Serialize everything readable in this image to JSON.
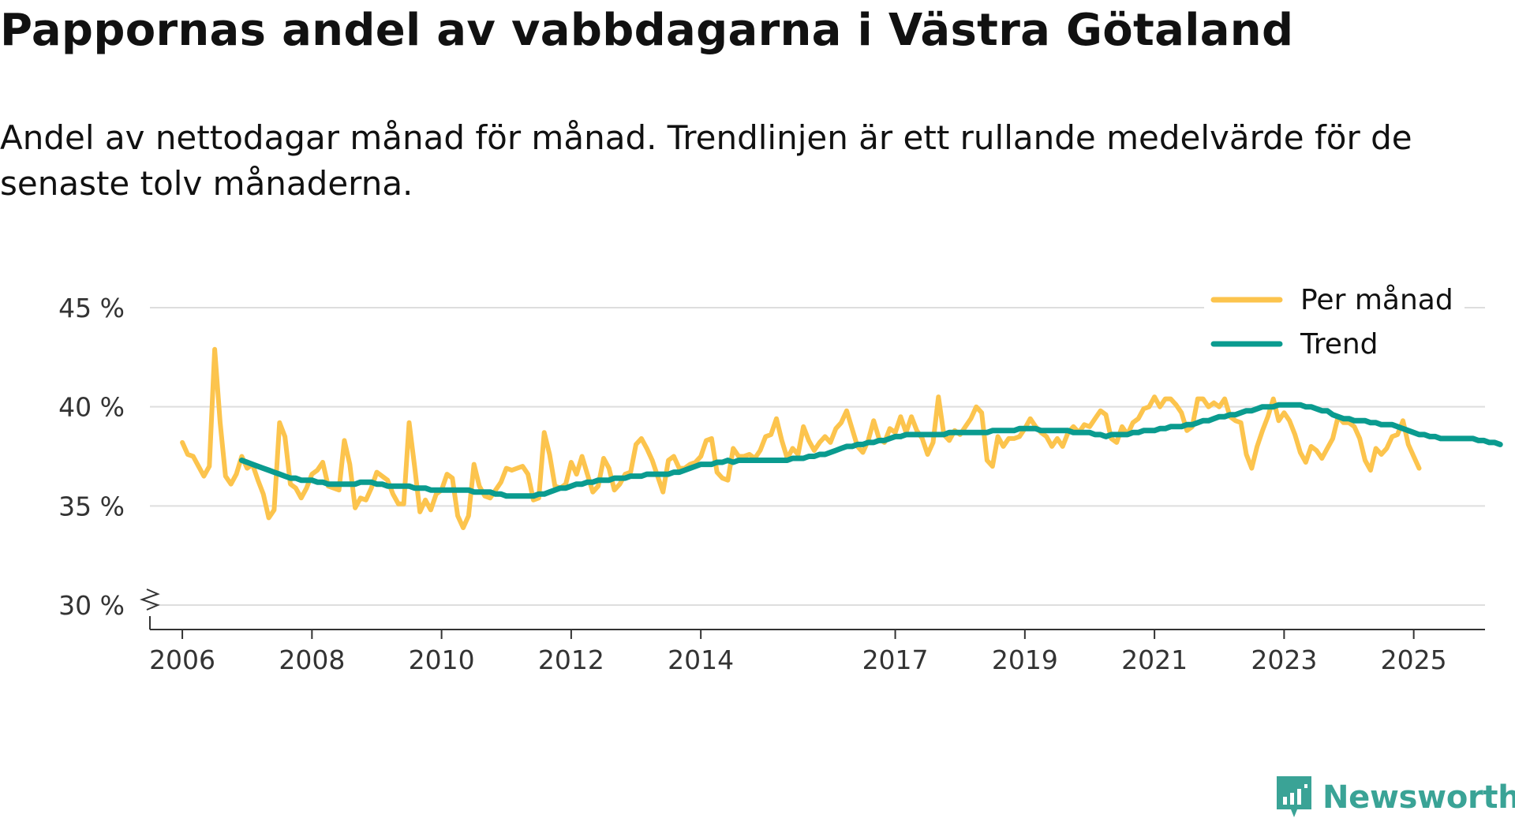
{
  "title": "Pappornas andel av vabbdagarna i Västra Götaland",
  "subtitle": "Andel av nettodagar månad för månad. Trendlinjen är ett rullande medelvärde för de senaste tolv månaderna.",
  "brand": "Newsworthy",
  "colors": {
    "monthly": "#fcc44d",
    "trend": "#0a9b8f",
    "grid": "#dedede",
    "axis": "#333333",
    "brand": "#3aa396"
  },
  "chart_data": {
    "type": "line",
    "title": "Pappornas andel av vabbdagarna i Västra Götaland",
    "xlabel": "",
    "ylabel": "",
    "ylim": [
      30,
      45
    ],
    "xlim": [
      2005.5,
      2026.1
    ],
    "y_ticks": [
      {
        "value": 30,
        "label": "30 %"
      },
      {
        "value": 35,
        "label": "35 %"
      },
      {
        "value": 40,
        "label": "40 %"
      },
      {
        "value": 45,
        "label": "45 %"
      }
    ],
    "x_ticks": [
      {
        "value": 2006,
        "label": "2006"
      },
      {
        "value": 2008,
        "label": "2008"
      },
      {
        "value": 2010,
        "label": "2010"
      },
      {
        "value": 2012,
        "label": "2012"
      },
      {
        "value": 2014,
        "label": "2014"
      },
      {
        "value": 2017,
        "label": "2017"
      },
      {
        "value": 2019,
        "label": "2019"
      },
      {
        "value": 2021,
        "label": "2021"
      },
      {
        "value": 2023,
        "label": "2023"
      },
      {
        "value": 2025,
        "label": "2025"
      }
    ],
    "legend": {
      "position": "top-right",
      "entries": [
        "Per månad",
        "Trend"
      ]
    },
    "series": [
      {
        "name": "Per månad",
        "color": "#fcc44d",
        "start": 2006.0,
        "step": 0.0833333,
        "values": [
          38.2,
          37.6,
          37.5,
          37.0,
          36.5,
          37.0,
          42.9,
          39.2,
          36.5,
          36.1,
          36.6,
          37.5,
          36.9,
          37.1,
          36.3,
          35.6,
          34.4,
          34.8,
          39.2,
          38.5,
          36.1,
          35.9,
          35.4,
          35.9,
          36.6,
          36.8,
          37.2,
          36.0,
          35.9,
          35.8,
          38.3,
          37.1,
          34.9,
          35.4,
          35.3,
          35.9,
          36.7,
          36.5,
          36.3,
          35.6,
          35.1,
          35.1,
          39.2,
          37.0,
          34.7,
          35.3,
          34.8,
          35.6,
          35.8,
          36.6,
          36.4,
          34.5,
          33.9,
          34.5,
          37.1,
          36.0,
          35.5,
          35.4,
          35.8,
          36.2,
          36.9,
          36.8,
          36.9,
          37.0,
          36.6,
          35.3,
          35.4,
          38.7,
          37.6,
          36.0,
          35.9,
          36.1,
          37.2,
          36.6,
          37.5,
          36.6,
          35.7,
          36.0,
          37.4,
          36.9,
          35.8,
          36.1,
          36.6,
          36.7,
          38.1,
          38.4,
          37.9,
          37.3,
          36.5,
          35.7,
          37.3,
          37.5,
          36.9,
          36.9,
          37.1,
          37.2,
          37.5,
          38.3,
          38.4,
          36.7,
          36.4,
          36.3,
          37.9,
          37.5,
          37.5,
          37.6,
          37.4,
          37.8,
          38.5,
          38.6,
          39.4,
          38.3,
          37.4,
          37.9,
          37.6,
          39.0,
          38.3,
          37.8,
          38.2,
          38.5,
          38.2,
          38.9,
          39.2,
          39.8,
          38.9,
          38.0,
          37.7,
          38.3,
          39.3,
          38.4,
          38.2,
          38.9,
          38.7,
          39.5,
          38.7,
          39.5,
          38.8,
          38.4,
          37.6,
          38.2,
          40.5,
          38.6,
          38.3,
          38.8,
          38.6,
          39.0,
          39.4,
          40.0,
          39.7,
          37.3,
          37.0,
          38.5,
          38.0,
          38.4,
          38.4,
          38.5,
          38.9,
          39.4,
          39.0,
          38.7,
          38.5,
          38.0,
          38.4,
          38.0,
          38.7,
          39.0,
          38.7,
          39.1,
          39.0,
          39.4,
          39.8,
          39.6,
          38.4,
          38.2,
          39.0,
          38.6,
          39.2,
          39.4,
          39.9,
          40.0,
          40.5,
          40.0,
          40.4,
          40.4,
          40.1,
          39.7,
          38.8,
          39.0,
          40.4,
          40.4,
          40.0,
          40.2,
          40.0,
          40.4,
          39.5,
          39.3,
          39.2,
          37.6,
          36.9,
          38.0,
          38.8,
          39.5,
          40.4,
          39.3,
          39.7,
          39.3,
          38.6,
          37.7,
          37.2,
          38.0,
          37.8,
          37.4,
          37.9,
          38.4,
          39.5,
          39.2,
          39.2,
          39.0,
          38.4,
          37.3,
          36.8,
          37.9,
          37.6,
          37.9,
          38.5,
          38.6,
          39.3,
          38.1,
          37.5,
          36.9
        ]
      },
      {
        "name": "Trend",
        "color": "#0a9b8f",
        "start": 2006.9167,
        "step": 0.0833333,
        "values": [
          37.3,
          37.2,
          37.1,
          37.0,
          36.9,
          36.8,
          36.7,
          36.6,
          36.5,
          36.4,
          36.4,
          36.3,
          36.3,
          36.3,
          36.2,
          36.2,
          36.1,
          36.1,
          36.1,
          36.1,
          36.1,
          36.1,
          36.2,
          36.2,
          36.2,
          36.1,
          36.1,
          36.0,
          36.0,
          36.0,
          36.0,
          36.0,
          35.9,
          35.9,
          35.9,
          35.8,
          35.8,
          35.8,
          35.8,
          35.8,
          35.8,
          35.8,
          35.8,
          35.7,
          35.7,
          35.7,
          35.7,
          35.6,
          35.6,
          35.5,
          35.5,
          35.5,
          35.5,
          35.5,
          35.5,
          35.6,
          35.6,
          35.7,
          35.8,
          35.9,
          35.9,
          36.0,
          36.1,
          36.1,
          36.2,
          36.2,
          36.3,
          36.3,
          36.3,
          36.4,
          36.4,
          36.4,
          36.5,
          36.5,
          36.5,
          36.6,
          36.6,
          36.6,
          36.6,
          36.6,
          36.7,
          36.7,
          36.8,
          36.9,
          37.0,
          37.1,
          37.1,
          37.1,
          37.2,
          37.2,
          37.3,
          37.2,
          37.3,
          37.3,
          37.3,
          37.3,
          37.3,
          37.3,
          37.3,
          37.3,
          37.3,
          37.3,
          37.4,
          37.4,
          37.4,
          37.5,
          37.5,
          37.6,
          37.6,
          37.7,
          37.8,
          37.9,
          38.0,
          38.0,
          38.1,
          38.1,
          38.2,
          38.2,
          38.3,
          38.3,
          38.4,
          38.5,
          38.5,
          38.6,
          38.6,
          38.6,
          38.6,
          38.6,
          38.6,
          38.6,
          38.6,
          38.7,
          38.7,
          38.7,
          38.7,
          38.7,
          38.7,
          38.7,
          38.7,
          38.8,
          38.8,
          38.8,
          38.8,
          38.8,
          38.9,
          38.9,
          38.9,
          38.9,
          38.8,
          38.8,
          38.8,
          38.8,
          38.8,
          38.8,
          38.7,
          38.7,
          38.7,
          38.7,
          38.6,
          38.6,
          38.5,
          38.6,
          38.6,
          38.6,
          38.6,
          38.7,
          38.7,
          38.8,
          38.8,
          38.8,
          38.9,
          38.9,
          39.0,
          39.0,
          39.0,
          39.1,
          39.1,
          39.2,
          39.3,
          39.3,
          39.4,
          39.5,
          39.5,
          39.6,
          39.6,
          39.7,
          39.8,
          39.8,
          39.9,
          40.0,
          40.0,
          40.0,
          40.1,
          40.1,
          40.1,
          40.1,
          40.1,
          40.0,
          40.0,
          39.9,
          39.8,
          39.8,
          39.6,
          39.5,
          39.4,
          39.4,
          39.3,
          39.3,
          39.3,
          39.2,
          39.2,
          39.1,
          39.1,
          39.1,
          39.0,
          38.9,
          38.8,
          38.7,
          38.6,
          38.6,
          38.5,
          38.5,
          38.4,
          38.4,
          38.4,
          38.4,
          38.4,
          38.4,
          38.4,
          38.3,
          38.3,
          38.2,
          38.2,
          38.1
        ]
      }
    ]
  }
}
